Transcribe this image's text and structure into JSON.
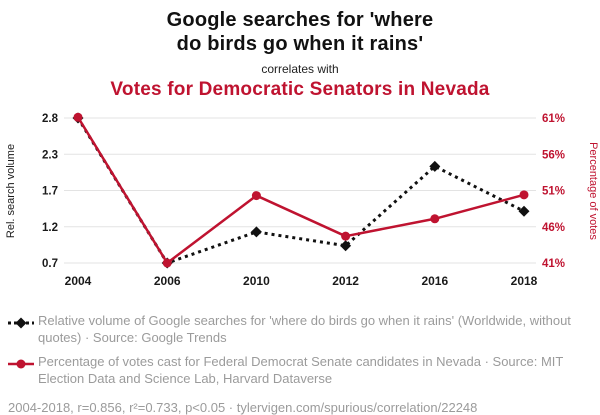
{
  "header": {
    "title_line1": "Google searches for 'where",
    "title_line2": "do birds go when it rains'",
    "connector": "correlates with",
    "title2": "Votes for Democratic Senators in Nevada"
  },
  "colors": {
    "accent_red": "#bf1330",
    "series_black": "#111111",
    "grid": "#e3e3e3",
    "tick_black": "#1a1a1a",
    "muted_text": "#9b9b9b"
  },
  "chart_data": {
    "type": "line",
    "categories": [
      "2004",
      "2006",
      "2010",
      "2012",
      "2016",
      "2018"
    ],
    "series": [
      {
        "name": "Relative volume of Google searches",
        "axis": "left",
        "style": "dashed",
        "marker": "diamond",
        "color": "#111111",
        "values": [
          2.8,
          0.7,
          1.15,
          0.95,
          2.1,
          1.45
        ]
      },
      {
        "name": "Percentage of votes for Democratic Senators in Nevada",
        "axis": "right",
        "style": "solid",
        "marker": "circle",
        "color": "#bf1330",
        "values": [
          61.1,
          41.0,
          50.3,
          44.7,
          47.1,
          50.4
        ]
      }
    ],
    "left_axis": {
      "label": "Rel. search volume",
      "ticks": [
        "2.8",
        "2.3",
        "1.7",
        "1.2",
        "0.7"
      ],
      "min": 0.7,
      "max": 2.8
    },
    "right_axis": {
      "label": "Percentage of votes",
      "ticks": [
        "61%",
        "56%",
        "51%",
        "46%",
        "41%"
      ],
      "min": 41,
      "max": 61
    },
    "grid": true,
    "legend_position": "bottom"
  },
  "legend": [
    {
      "icon": "black-diamond-dashed-line",
      "text": "Relative volume of Google searches for 'where do birds go when it rains' (Worldwide, without quotes) · Source: Google Trends"
    },
    {
      "icon": "red-circle-solid-line",
      "text": "Percentage of votes cast for Federal Democrat Senate candidates in Nevada · Source: MIT Election Data and Science Lab, Harvard Dataverse"
    }
  ],
  "footer": {
    "text": "2004-2018, r=0.856, r²=0.733, p<0.05 · tylervigen.com/spurious/correlation/22248"
  }
}
